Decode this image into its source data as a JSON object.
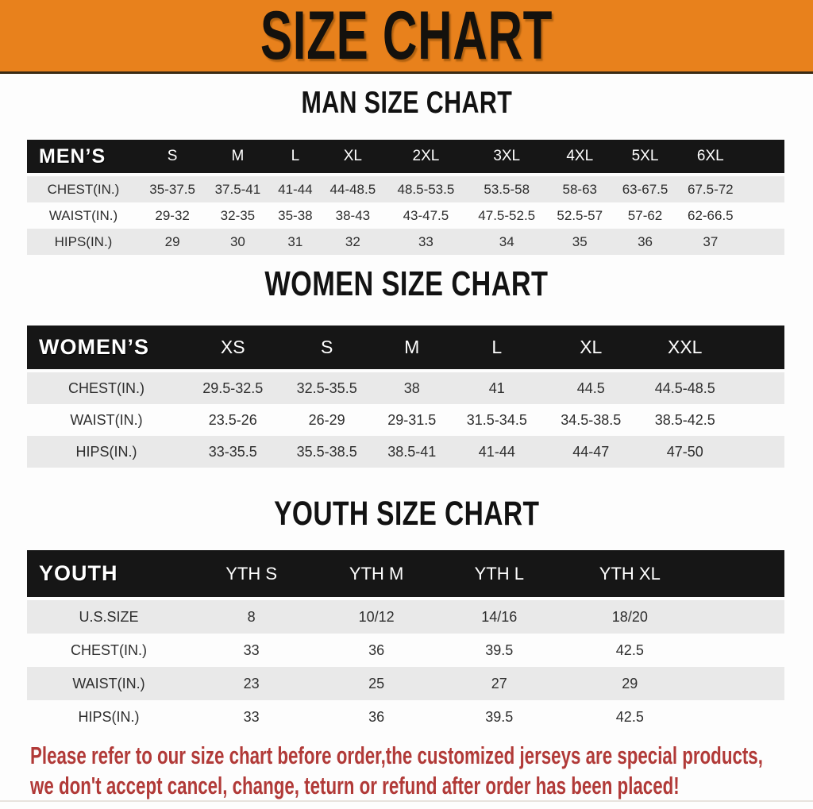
{
  "banner": {
    "title": "SIZE CHART"
  },
  "colors": {
    "banner_bg": "#e8811c",
    "header_bar": "#161616",
    "stripe": "#e9e9e9",
    "disclaimer": "#b13a38"
  },
  "sections": [
    {
      "id": "men",
      "title": "MAN SIZE CHART",
      "header_label": "MEN’S",
      "columns": [
        "S",
        "M",
        "L",
        "XL",
        "2XL",
        "3XL",
        "4XL",
        "5XL",
        "6XL"
      ],
      "rows": [
        {
          "label": "CHEST(IN.)",
          "values": [
            "35-37.5",
            "37.5-41",
            "41-44",
            "44-48.5",
            "48.5-53.5",
            "53.5-58",
            "58-63",
            "63-67.5",
            "67.5-72"
          ]
        },
        {
          "label": "WAIST(IN.)",
          "values": [
            "29-32",
            "32-35",
            "35-38",
            "38-43",
            "43-47.5",
            "47.5-52.5",
            "52.5-57",
            "57-62",
            "62-66.5"
          ]
        },
        {
          "label": "HIPS(IN.)",
          "values": [
            "29",
            "30",
            "31",
            "32",
            "33",
            "34",
            "35",
            "36",
            "37"
          ]
        }
      ]
    },
    {
      "id": "women",
      "title": "WOMEN SIZE CHART",
      "header_label": "WOMEN’S",
      "columns": [
        "XS",
        "S",
        "M",
        "L",
        "XL",
        "XXL"
      ],
      "rows": [
        {
          "label": "CHEST(IN.)",
          "values": [
            "29.5-32.5",
            "32.5-35.5",
            "38",
            "41",
            "44.5",
            "44.5-48.5"
          ]
        },
        {
          "label": "WAIST(IN.)",
          "values": [
            "23.5-26",
            "26-29",
            "29-31.5",
            "31.5-34.5",
            "34.5-38.5",
            "38.5-42.5"
          ]
        },
        {
          "label": "HIPS(IN.)",
          "values": [
            "33-35.5",
            "35.5-38.5",
            "38.5-41",
            "41-44",
            "44-47",
            "47-50"
          ]
        }
      ]
    },
    {
      "id": "youth",
      "title": "YOUTH SIZE CHART",
      "header_label": "YOUTH",
      "columns": [
        "YTH S",
        "YTH M",
        "YTH L",
        "YTH XL"
      ],
      "rows": [
        {
          "label": "U.S.SIZE",
          "values": [
            "8",
            "10/12",
            "14/16",
            "18/20"
          ]
        },
        {
          "label": "CHEST(IN.)",
          "values": [
            "33",
            "36",
            "39.5",
            "42.5"
          ]
        },
        {
          "label": "WAIST(IN.)",
          "values": [
            "23",
            "25",
            "27",
            "29"
          ]
        },
        {
          "label": "HIPS(IN.)",
          "values": [
            "33",
            "36",
            "39.5",
            "42.5"
          ]
        }
      ]
    }
  ],
  "disclaimer": {
    "line1": "Please refer to our size chart before order,the customized jerseys are special products,",
    "line2": "we don't accept cancel, change, teturn or refund after order has been placed!"
  }
}
